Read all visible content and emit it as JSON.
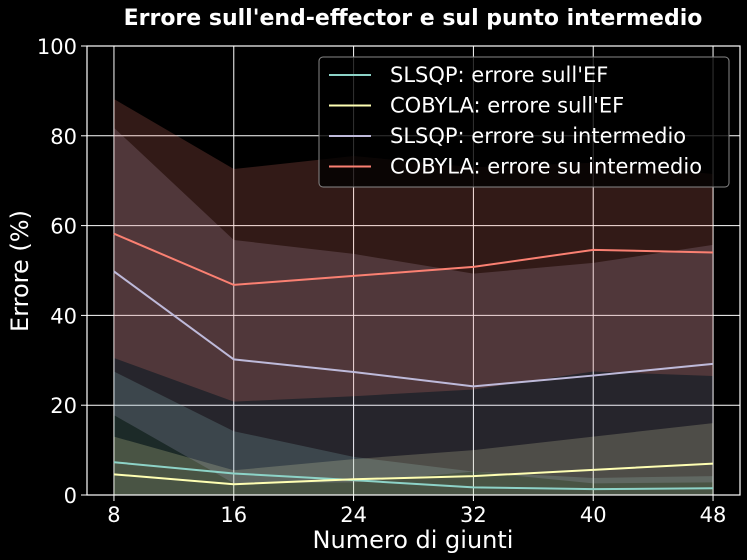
{
  "chart_data": {
    "type": "line",
    "title": "Errore sull'end-effector e sul punto intermedio",
    "xlabel": "Numero di giunti",
    "ylabel": "Errore (%)",
    "x": [
      8,
      16,
      24,
      32,
      40,
      48
    ],
    "xticks": [
      "8",
      "16",
      "24",
      "32",
      "40",
      "48"
    ],
    "xlim": [
      6.2,
      49.8
    ],
    "ylim": [
      0,
      100
    ],
    "yticks": [
      "0",
      "20",
      "40",
      "60",
      "80",
      "100"
    ],
    "grid": true,
    "legend_position": "top-right",
    "series": [
      {
        "name": "SLSQP: errore sull'EF",
        "color": "#8dd3c7",
        "values": [
          7.3,
          4.8,
          3.3,
          1.7,
          1.3,
          1.5
        ],
        "lower": [
          0,
          0,
          0,
          0,
          0,
          0
        ],
        "upper": [
          27.5,
          14.2,
          8.5,
          5.2,
          3.8,
          4.2
        ]
      },
      {
        "name": "COBYLA: errore sull'EF",
        "color": "#ffffb3",
        "values": [
          4.6,
          2.4,
          3.5,
          4.2,
          5.6,
          7.0
        ],
        "lower": [
          0,
          0,
          0,
          0,
          0,
          0
        ],
        "upper": [
          13.0,
          5.5,
          8.0,
          10.0,
          13.0,
          16.0
        ]
      },
      {
        "name": "SLSQP: errore su intermedio",
        "color": "#bebada",
        "values": [
          49.8,
          30.2,
          27.4,
          24.2,
          26.6,
          29.2
        ],
        "lower": [
          17.8,
          2.6,
          2.8,
          5.2,
          2.6,
          2.8
        ],
        "upper": [
          81.8,
          56.8,
          53.7,
          49.3,
          51.7,
          55.7
        ]
      },
      {
        "name": "COBYLA: errore su intermedio",
        "color": "#fa8072",
        "values": [
          58.2,
          46.8,
          48.8,
          50.8,
          54.6,
          54.0
        ],
        "lower": [
          30.5,
          20.8,
          22.0,
          23.5,
          27.5,
          26.5
        ],
        "upper": [
          88.2,
          72.6,
          75.5,
          73.0,
          74.0,
          71.5
        ]
      }
    ]
  }
}
